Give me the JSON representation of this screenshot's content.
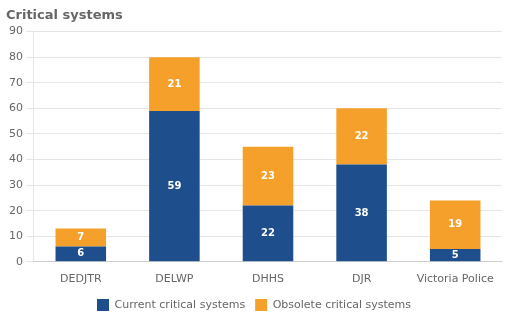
{
  "chart_data": {
    "type": "bar",
    "title": "Critical systems",
    "categories": [
      "DEDJTR",
      "DELWP",
      "DHHS",
      "DJR",
      "Victoria Police"
    ],
    "series": [
      {
        "name": "Current critical systems",
        "color": "#1F4E8C",
        "values": [
          6,
          59,
          22,
          38,
          5
        ]
      },
      {
        "name": "Obsolete critical systems",
        "color": "#F5A02A",
        "values": [
          7,
          21,
          23,
          22,
          19
        ]
      }
    ],
    "stacked": true,
    "ylim": [
      0,
      90
    ],
    "yticks": [
      0,
      10,
      20,
      30,
      40,
      50,
      60,
      70,
      80,
      90
    ],
    "grid": true,
    "legend": "bottom",
    "data_labels": true
  }
}
